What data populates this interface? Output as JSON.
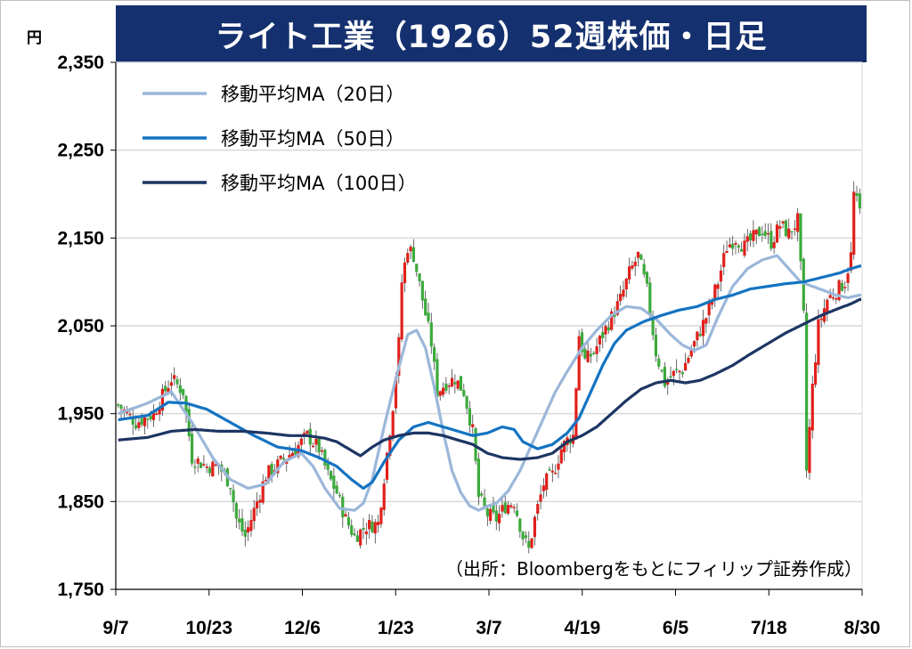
{
  "chart_data": {
    "type": "candlestick",
    "title": "ライト工業（1926）52週株価・日足",
    "unit_label": "円",
    "ylim": [
      1750,
      2350
    ],
    "yticks": [
      1750,
      1850,
      1950,
      2050,
      2150,
      2250,
      2350
    ],
    "ytick_labels": [
      "1,750",
      "1,850",
      "1,950",
      "2,050",
      "2,150",
      "2,250",
      "2,350"
    ],
    "x_labels": [
      "9/7",
      "10/23",
      "12/6",
      "1/23",
      "3/7",
      "4/19",
      "6/5",
      "7/18",
      "8/30"
    ],
    "grid": "horizontal",
    "legend_position": "top-left",
    "source_note": "（出所：Bloombergをもとにフィリップ証券作成）",
    "colors": {
      "up": "#e0201b",
      "down": "#3caa3c",
      "ma20": "#9bb7d9",
      "ma50": "#1473c1",
      "ma100": "#1c3563",
      "grid": "#d9d9d9",
      "title_bg": "#14306e"
    },
    "price_path": [
      [
        0,
        1960
      ],
      [
        6,
        1940
      ],
      [
        12,
        1950
      ],
      [
        18,
        1990
      ],
      [
        22,
        1975
      ],
      [
        25,
        1900
      ],
      [
        30,
        1890
      ],
      [
        34,
        1890
      ],
      [
        38,
        1870
      ],
      [
        40,
        1830
      ],
      [
        43,
        1810
      ],
      [
        46,
        1840
      ],
      [
        50,
        1880
      ],
      [
        55,
        1895
      ],
      [
        60,
        1910
      ],
      [
        64,
        1925
      ],
      [
        68,
        1910
      ],
      [
        71,
        1880
      ],
      [
        74,
        1860
      ],
      [
        77,
        1830
      ],
      [
        80,
        1810
      ],
      [
        84,
        1822
      ],
      [
        88,
        1825
      ],
      [
        91,
        1905
      ],
      [
        93,
        1960
      ],
      [
        95,
        2030
      ],
      [
        96,
        2100
      ],
      [
        98,
        2140
      ],
      [
        100,
        2130
      ],
      [
        103,
        2080
      ],
      [
        106,
        2030
      ],
      [
        108,
        1975
      ],
      [
        111,
        1985
      ],
      [
        114,
        1990
      ],
      [
        117,
        1975
      ],
      [
        120,
        1930
      ],
      [
        122,
        1855
      ],
      [
        125,
        1835
      ],
      [
        128,
        1830
      ],
      [
        131,
        1845
      ],
      [
        134,
        1850
      ],
      [
        137,
        1810
      ],
      [
        139,
        1795
      ],
      [
        141,
        1830
      ],
      [
        144,
        1870
      ],
      [
        147,
        1880
      ],
      [
        150,
        1910
      ],
      [
        152,
        1920
      ],
      [
        154,
        1925
      ],
      [
        156,
        2040
      ],
      [
        158,
        2010
      ],
      [
        161,
        2020
      ],
      [
        164,
        2040
      ],
      [
        167,
        2060
      ],
      [
        170,
        2080
      ],
      [
        173,
        2110
      ],
      [
        176,
        2130
      ],
      [
        179,
        2090
      ],
      [
        182,
        2020
      ],
      [
        185,
        1985
      ],
      [
        188,
        1995
      ],
      [
        191,
        2000
      ],
      [
        195,
        2030
      ],
      [
        199,
        2060
      ],
      [
        203,
        2100
      ],
      [
        206,
        2140
      ],
      [
        209,
        2150
      ],
      [
        212,
        2140
      ],
      [
        215,
        2150
      ],
      [
        218,
        2160
      ],
      [
        221,
        2145
      ],
      [
        224,
        2165
      ],
      [
        227,
        2155
      ],
      [
        230,
        2170
      ],
      [
        232,
        2060
      ],
      [
        233,
        1885
      ],
      [
        235,
        1980
      ],
      [
        237,
        2050
      ],
      [
        240,
        2080
      ],
      [
        243,
        2090
      ],
      [
        246,
        2100
      ],
      [
        248,
        2130
      ],
      [
        249,
        2200
      ],
      [
        251,
        2180
      ]
    ],
    "series": [
      {
        "name": "移動平均MA（20日）",
        "points": [
          [
            0,
            1950
          ],
          [
            10,
            1962
          ],
          [
            18,
            1975
          ],
          [
            25,
            1940
          ],
          [
            32,
            1900
          ],
          [
            38,
            1875
          ],
          [
            44,
            1865
          ],
          [
            50,
            1870
          ],
          [
            56,
            1895
          ],
          [
            62,
            1905
          ],
          [
            66,
            1890
          ],
          [
            70,
            1865
          ],
          [
            75,
            1842
          ],
          [
            80,
            1840
          ],
          [
            83,
            1848
          ],
          [
            86,
            1875
          ],
          [
            90,
            1935
          ],
          [
            94,
            1990
          ],
          [
            98,
            2040
          ],
          [
            101,
            2045
          ],
          [
            104,
            2025
          ],
          [
            107,
            1980
          ],
          [
            110,
            1930
          ],
          [
            113,
            1885
          ],
          [
            116,
            1860
          ],
          [
            119,
            1845
          ],
          [
            122,
            1840
          ],
          [
            125,
            1845
          ],
          [
            128,
            1848
          ],
          [
            132,
            1862
          ],
          [
            136,
            1885
          ],
          [
            140,
            1915
          ],
          [
            144,
            1945
          ],
          [
            148,
            1975
          ],
          [
            152,
            1998
          ],
          [
            157,
            2025
          ],
          [
            162,
            2045
          ],
          [
            167,
            2062
          ],
          [
            172,
            2072
          ],
          [
            177,
            2070
          ],
          [
            182,
            2058
          ],
          [
            187,
            2040
          ],
          [
            191,
            2028
          ],
          [
            195,
            2022
          ],
          [
            199,
            2028
          ],
          [
            203,
            2060
          ],
          [
            208,
            2095
          ],
          [
            213,
            2115
          ],
          [
            218,
            2125
          ],
          [
            223,
            2130
          ],
          [
            227,
            2115
          ],
          [
            231,
            2100
          ],
          [
            235,
            2095
          ],
          [
            239,
            2090
          ],
          [
            243,
            2085
          ],
          [
            247,
            2082
          ],
          [
            251,
            2085
          ]
        ]
      },
      {
        "name": "移動平均MA（50日）",
        "points": [
          [
            0,
            1943
          ],
          [
            10,
            1948
          ],
          [
            17,
            1963
          ],
          [
            23,
            1962
          ],
          [
            30,
            1955
          ],
          [
            38,
            1940
          ],
          [
            46,
            1925
          ],
          [
            54,
            1912
          ],
          [
            62,
            1908
          ],
          [
            68,
            1900
          ],
          [
            74,
            1890
          ],
          [
            79,
            1875
          ],
          [
            83,
            1865
          ],
          [
            86,
            1872
          ],
          [
            90,
            1895
          ],
          [
            95,
            1920
          ],
          [
            100,
            1935
          ],
          [
            105,
            1940
          ],
          [
            110,
            1935
          ],
          [
            115,
            1930
          ],
          [
            120,
            1925
          ],
          [
            125,
            1928
          ],
          [
            130,
            1935
          ],
          [
            134,
            1932
          ],
          [
            137,
            1918
          ],
          [
            142,
            1910
          ],
          [
            147,
            1915
          ],
          [
            152,
            1928
          ],
          [
            156,
            1945
          ],
          [
            160,
            1975
          ],
          [
            164,
            2005
          ],
          [
            168,
            2030
          ],
          [
            172,
            2045
          ],
          [
            178,
            2055
          ],
          [
            184,
            2062
          ],
          [
            190,
            2068
          ],
          [
            196,
            2072
          ],
          [
            202,
            2080
          ],
          [
            208,
            2085
          ],
          [
            214,
            2092
          ],
          [
            220,
            2095
          ],
          [
            226,
            2098
          ],
          [
            232,
            2100
          ],
          [
            238,
            2105
          ],
          [
            244,
            2110
          ],
          [
            248,
            2115
          ],
          [
            251,
            2118
          ]
        ]
      },
      {
        "name": "移動平均MA（100日）",
        "points": [
          [
            0,
            1920
          ],
          [
            10,
            1923
          ],
          [
            18,
            1930
          ],
          [
            26,
            1932
          ],
          [
            34,
            1930
          ],
          [
            42,
            1930
          ],
          [
            50,
            1928
          ],
          [
            58,
            1925
          ],
          [
            64,
            1925
          ],
          [
            70,
            1922
          ],
          [
            74,
            1918
          ],
          [
            78,
            1910
          ],
          [
            82,
            1902
          ],
          [
            86,
            1912
          ],
          [
            90,
            1920
          ],
          [
            95,
            1925
          ],
          [
            100,
            1928
          ],
          [
            105,
            1928
          ],
          [
            110,
            1925
          ],
          [
            115,
            1920
          ],
          [
            120,
            1915
          ],
          [
            125,
            1905
          ],
          [
            130,
            1900
          ],
          [
            136,
            1898
          ],
          [
            142,
            1900
          ],
          [
            147,
            1905
          ],
          [
            152,
            1918
          ],
          [
            157,
            1925
          ],
          [
            162,
            1935
          ],
          [
            167,
            1950
          ],
          [
            172,
            1965
          ],
          [
            177,
            1978
          ],
          [
            182,
            1985
          ],
          [
            187,
            1988
          ],
          [
            192,
            1985
          ],
          [
            197,
            1988
          ],
          [
            202,
            1995
          ],
          [
            208,
            2005
          ],
          [
            214,
            2018
          ],
          [
            220,
            2030
          ],
          [
            226,
            2042
          ],
          [
            232,
            2052
          ],
          [
            238,
            2062
          ],
          [
            244,
            2070
          ],
          [
            248,
            2075
          ],
          [
            251,
            2080
          ]
        ]
      }
    ]
  }
}
